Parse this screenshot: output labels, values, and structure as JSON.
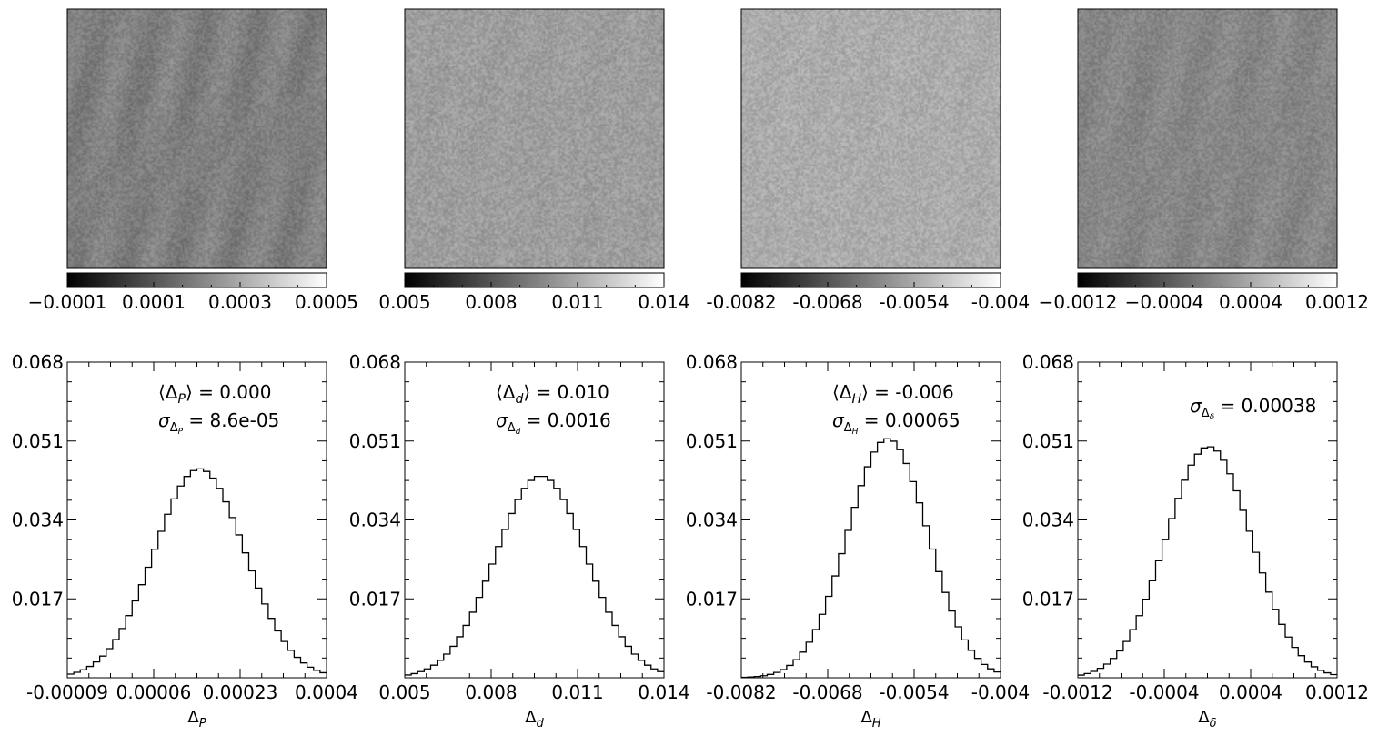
{
  "panels": [
    {
      "image": {
        "base_gray": 128,
        "noise": 16,
        "streaks": 10
      },
      "colorbar": {
        "ticks": [
          "−0.0001",
          "0.0001",
          "0.0003",
          "0.0005"
        ],
        "range": [
          -0.0001,
          0.0005
        ]
      },
      "histogram": {
        "xlabel_base": "Δ",
        "xlabel_sub": "P",
        "xticks": [
          "-0.00009",
          "0.00006",
          "0.00023",
          "0.0004"
        ],
        "xrange": [
          -9e-05,
          0.0004
        ],
        "mean_text": {
          "prefix": "⟨Δ",
          "sub": "P",
          "suffix": "⟩ = 0.000"
        },
        "sigma_text": {
          "prefix": "σ",
          "sub": "Δ",
          "subsub": "P",
          "suffix": " = 8.6e-05"
        },
        "peak": 0.045,
        "center_frac": 0.51,
        "width_frac": 0.175
      }
    },
    {
      "image": {
        "base_gray": 158,
        "noise": 18,
        "streaks": 2
      },
      "colorbar": {
        "ticks": [
          "0.005",
          "0.008",
          "0.011",
          "0.014"
        ],
        "range": [
          0.005,
          0.014
        ]
      },
      "histogram": {
        "xlabel_base": "Δ",
        "xlabel_sub": "d",
        "xticks": [
          "0.005",
          "0.008",
          "0.011",
          "0.014"
        ],
        "xrange": [
          0.005,
          0.014
        ],
        "mean_text": {
          "prefix": "⟨Δ",
          "sub": "d",
          "suffix": "⟩ = 0.010"
        },
        "sigma_text": {
          "prefix": "σ",
          "sub": "Δ",
          "subsub": "d",
          "suffix": " = 0.0016"
        },
        "peak": 0.0435,
        "center_frac": 0.525,
        "width_frac": 0.175
      }
    },
    {
      "image": {
        "base_gray": 172,
        "noise": 18,
        "streaks": 2
      },
      "colorbar": {
        "ticks": [
          "-0.0082",
          "-0.0068",
          "-0.0054",
          "-0.004"
        ],
        "range": [
          -0.0082,
          -0.004
        ]
      },
      "histogram": {
        "xlabel_base": "Δ",
        "xlabel_sub": "H",
        "xticks": [
          "-0.0082",
          "-0.0068",
          "-0.0054",
          "-0.004"
        ],
        "xrange": [
          -0.0082,
          -0.004
        ],
        "mean_text": {
          "prefix": "⟨Δ",
          "sub": "H",
          "suffix": "⟩ = -0.006"
        },
        "sigma_text": {
          "prefix": "σ",
          "sub": "Δ",
          "subsub": "H",
          "suffix": " = 0.00065"
        },
        "peak": 0.0515,
        "center_frac": 0.565,
        "width_frac": 0.155
      }
    },
    {
      "image": {
        "base_gray": 135,
        "noise": 16,
        "streaks": 6
      },
      "colorbar": {
        "ticks": [
          "−0.0012",
          "−0.0004",
          "0.0004",
          "0.0012"
        ],
        "range": [
          -0.0012,
          0.0012
        ]
      },
      "histogram": {
        "xlabel_base": "Δ",
        "xlabel_sub": "δ",
        "xticks": [
          "-0.0012",
          "-0.0004",
          "0.0004",
          "0.0012"
        ],
        "xrange": [
          -0.0012,
          0.0012
        ],
        "mean_text": null,
        "sigma_text": {
          "prefix": "σ",
          "sub": "Δ",
          "subsub": "δ",
          "suffix": " = 0.00038"
        },
        "peak": 0.0498,
        "center_frac": 0.505,
        "width_frac": 0.165
      }
    }
  ],
  "chart_data": {
    "type": "bar",
    "description_of_series": "four step histograms",
    "yticks": [
      "0.068",
      "0.051",
      "0.034",
      "0.017"
    ],
    "ylim": [
      0,
      0.068
    ],
    "grid": false,
    "series": [
      {
        "name": "ΔP",
        "mean": 0.0,
        "sigma": 8.6e-05,
        "xlim": [
          -9e-05,
          0.0004
        ],
        "peak_density": 0.045
      },
      {
        "name": "Δd",
        "mean": 0.01,
        "sigma": 0.0016,
        "xlim": [
          0.005,
          0.014
        ],
        "peak_density": 0.0435
      },
      {
        "name": "ΔH",
        "mean": -0.006,
        "sigma": 0.00065,
        "xlim": [
          -0.0082,
          -0.004
        ],
        "peak_density": 0.0515
      },
      {
        "name": "Δδ",
        "sigma": 0.00038,
        "xlim": [
          -0.0012,
          0.0012
        ],
        "peak_density": 0.0498
      }
    ]
  }
}
